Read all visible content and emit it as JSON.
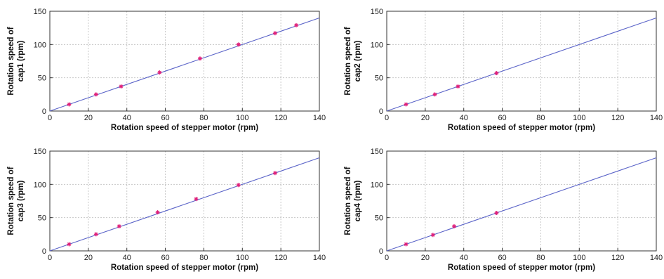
{
  "chart_data": [
    {
      "type": "scatter",
      "xlabel": "Rotation speed of stepper motor (rpm)",
      "ylabel": [
        "Rotation speed of",
        "cap1 (rpm)"
      ],
      "xlim": [
        0,
        140
      ],
      "ylim": [
        0,
        150
      ],
      "xticks": [
        0,
        20,
        40,
        60,
        80,
        100,
        120,
        140
      ],
      "yticks": [
        0,
        50,
        100,
        150
      ],
      "grid": true,
      "fit_line": {
        "x": [
          0,
          140
        ],
        "y": [
          0,
          140
        ]
      },
      "series": [
        {
          "x": [
            10,
            24,
            37,
            57,
            78,
            98,
            117,
            128
          ],
          "y": [
            10,
            25,
            37,
            58,
            79,
            100,
            117,
            129
          ]
        }
      ],
      "colors": {
        "points": "#e0207a",
        "line": "#5a63c8"
      }
    },
    {
      "type": "scatter",
      "xlabel": "Rotation speed of stepper motor (rpm)",
      "ylabel": [
        "Rotation speed of",
        "cap2 (rpm)"
      ],
      "xlim": [
        0,
        140
      ],
      "ylim": [
        0,
        150
      ],
      "xticks": [
        0,
        20,
        40,
        60,
        80,
        100,
        120,
        140
      ],
      "yticks": [
        0,
        50,
        100,
        150
      ],
      "grid": true,
      "fit_line": {
        "x": [
          0,
          140
        ],
        "y": [
          0,
          140
        ]
      },
      "series": [
        {
          "x": [
            10,
            25,
            37,
            57
          ],
          "y": [
            10,
            25,
            37,
            57
          ]
        }
      ],
      "colors": {
        "points": "#e0207a",
        "line": "#5a63c8"
      }
    },
    {
      "type": "scatter",
      "xlabel": "Rotation speed of stepper motor (rpm)",
      "ylabel": [
        "Rotation speed of",
        "cap3 (rpm)"
      ],
      "xlim": [
        0,
        140
      ],
      "ylim": [
        0,
        150
      ],
      "xticks": [
        0,
        20,
        40,
        60,
        80,
        100,
        120,
        140
      ],
      "yticks": [
        0,
        50,
        100,
        150
      ],
      "grid": true,
      "fit_line": {
        "x": [
          0,
          140
        ],
        "y": [
          0,
          140
        ]
      },
      "series": [
        {
          "x": [
            10,
            24,
            36,
            56,
            76,
            98,
            117
          ],
          "y": [
            10,
            25,
            37,
            58,
            78,
            99,
            117
          ]
        }
      ],
      "colors": {
        "points": "#e0207a",
        "line": "#5a63c8"
      }
    },
    {
      "type": "scatter",
      "xlabel": "Rotation speed of stepper motor (rpm)",
      "ylabel": [
        "Rotation speed of",
        "cap4 (rpm)"
      ],
      "xlim": [
        0,
        140
      ],
      "ylim": [
        0,
        150
      ],
      "xticks": [
        0,
        20,
        40,
        60,
        80,
        100,
        120,
        140
      ],
      "yticks": [
        0,
        50,
        100,
        150
      ],
      "grid": true,
      "fit_line": {
        "x": [
          0,
          140
        ],
        "y": [
          0,
          140
        ]
      },
      "series": [
        {
          "x": [
            10,
            24,
            35,
            57
          ],
          "y": [
            10,
            24,
            37,
            57
          ]
        }
      ],
      "colors": {
        "points": "#e0207a",
        "line": "#5a63c8"
      }
    }
  ]
}
